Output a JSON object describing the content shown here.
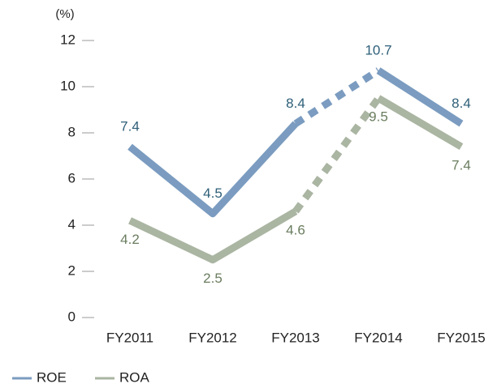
{
  "chart_data": {
    "type": "line",
    "y_label": "(%)",
    "categories": [
      "FY2011",
      "FY2012",
      "FY2013",
      "FY2014",
      "FY2015"
    ],
    "series": [
      {
        "name": "ROE",
        "color": "#7b9cc0",
        "label_color": "#2e5f78",
        "values": [
          7.4,
          4.5,
          8.4,
          10.7,
          8.4
        ]
      },
      {
        "name": "ROA",
        "color": "#aab5a2",
        "label_color": "#6a7d5f",
        "values": [
          4.2,
          2.5,
          4.6,
          9.5,
          7.4
        ]
      }
    ],
    "dashed_segment": [
      2,
      3
    ],
    "ylim": [
      0,
      12
    ],
    "yticks": [
      0,
      2,
      4,
      6,
      8,
      10,
      12
    ],
    "grid": false,
    "legend": "bottom-left"
  }
}
